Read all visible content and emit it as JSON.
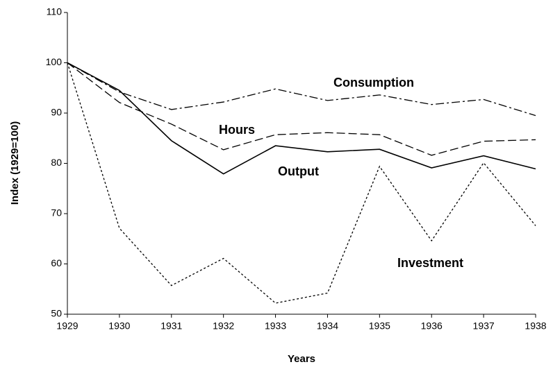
{
  "chart_data": {
    "type": "line",
    "x_label": "Years",
    "y_label": "Index (1929=100)",
    "x": [
      1929,
      1930,
      1931,
      1932,
      1933,
      1934,
      1935,
      1936,
      1937,
      1938
    ],
    "xlim": [
      1929,
      1938
    ],
    "xticks": [
      1929,
      1930,
      1931,
      1932,
      1933,
      1934,
      1935,
      1936,
      1937,
      1938
    ],
    "ylim": [
      50,
      110
    ],
    "yticks": [
      50,
      60,
      70,
      80,
      90,
      100,
      110
    ],
    "grid": false,
    "series": [
      {
        "name": "Consumption",
        "color": "#000000",
        "dash": "dashdot",
        "values": [
          100,
          94.2,
          90.7,
          92.2,
          94.8,
          92.5,
          93.6,
          91.7,
          92.7,
          89.5
        ]
      },
      {
        "name": "Hours",
        "color": "#000000",
        "dash": "dashed",
        "values": [
          100,
          92.1,
          87.8,
          82.7,
          85.7,
          86.1,
          85.7,
          81.6,
          84.4,
          84.7
        ]
      },
      {
        "name": "Output",
        "color": "#000000",
        "dash": "solid",
        "values": [
          100,
          94.5,
          84.5,
          77.9,
          83.5,
          82.3,
          82.8,
          79.1,
          81.5,
          78.9
        ]
      },
      {
        "name": "Investment",
        "color": "#000000",
        "dash": "dotted",
        "values": [
          100,
          67.1,
          55.7,
          61.1,
          52.2,
          54.2,
          79.4,
          64.6,
          80.1,
          67.6
        ]
      }
    ]
  }
}
